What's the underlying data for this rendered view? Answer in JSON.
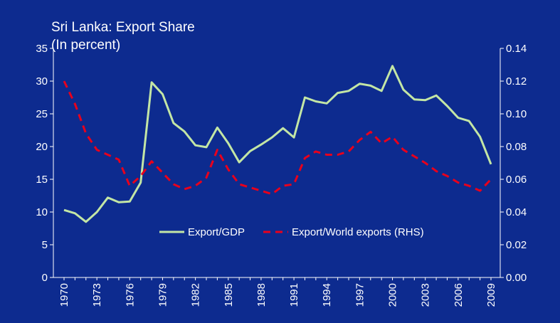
{
  "chart_data": {
    "type": "line",
    "title": "Sri Lanka: Export Share",
    "subtitle": "(In percent)",
    "x": [
      1970,
      1971,
      1972,
      1973,
      1974,
      1975,
      1976,
      1977,
      1978,
      1979,
      1980,
      1981,
      1982,
      1983,
      1984,
      1985,
      1986,
      1987,
      1988,
      1989,
      1990,
      1991,
      1992,
      1993,
      1994,
      1995,
      1996,
      1997,
      1998,
      1999,
      2000,
      2001,
      2002,
      2003,
      2004,
      2005,
      2006,
      2007,
      2008,
      2009
    ],
    "x_tick_labels": [
      "1970",
      "1973",
      "1976",
      "1979",
      "1982",
      "1985",
      "1988",
      "1991",
      "1994",
      "1997",
      "2000",
      "2003",
      "2006",
      "2009"
    ],
    "y_left": {
      "ylim": [
        0,
        35
      ],
      "ticks": [
        "0",
        "5",
        "10",
        "15",
        "20",
        "25",
        "30",
        "35"
      ]
    },
    "y_right": {
      "ylim": [
        0,
        0.14
      ],
      "ticks": [
        "0.00",
        "0.02",
        "0.04",
        "0.06",
        "0.08",
        "0.10",
        "0.12",
        "0.14"
      ]
    },
    "series": [
      {
        "name": "Export/GDP",
        "axis": "left",
        "color": "#c3e6a5",
        "style": "solid",
        "values": [
          10.3,
          9.8,
          8.5,
          10.0,
          12.2,
          11.5,
          11.6,
          14.5,
          29.8,
          28.0,
          23.6,
          22.3,
          20.2,
          19.9,
          22.9,
          20.5,
          17.6,
          19.3,
          20.3,
          21.4,
          22.8,
          21.4,
          27.5,
          26.9,
          26.6,
          28.2,
          28.5,
          29.6,
          29.3,
          28.5,
          32.3,
          28.7,
          27.2,
          27.1,
          27.8,
          26.2,
          24.4,
          23.9,
          21.5,
          17.3
        ]
      },
      {
        "name": "Export/World exports (RHS)",
        "axis": "right",
        "color": "#e8001c",
        "style": "dashed",
        "values": [
          0.12,
          0.106,
          0.088,
          0.078,
          0.075,
          0.072,
          0.056,
          0.062,
          0.071,
          0.064,
          0.057,
          0.054,
          0.056,
          0.061,
          0.078,
          0.066,
          0.057,
          0.055,
          0.053,
          0.051,
          0.056,
          0.057,
          0.073,
          0.077,
          0.075,
          0.075,
          0.077,
          0.084,
          0.089,
          0.082,
          0.086,
          0.078,
          0.074,
          0.07,
          0.065,
          0.062,
          0.058,
          0.056,
          0.053,
          0.06
        ]
      }
    ],
    "legend_position": "bottom-center",
    "grid": false
  },
  "colors": {
    "background": "#0d2b8f",
    "text": "#ffffff"
  }
}
